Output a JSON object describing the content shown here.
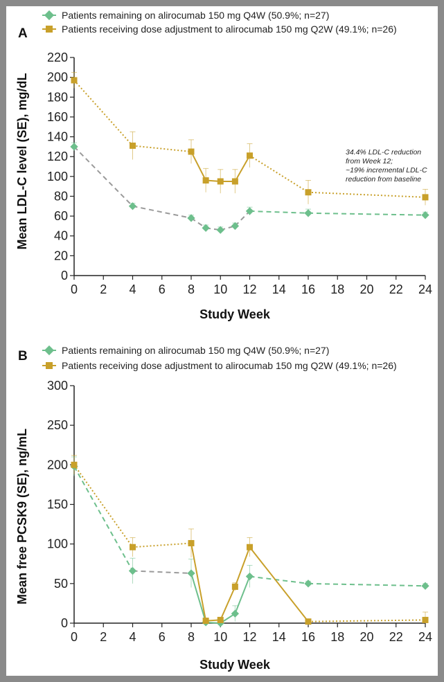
{
  "colors": {
    "q4w": "#6dbf8c",
    "q2w": "#c8a02a",
    "q4w_dashed": "#9a9a9a",
    "axis": "#222222"
  },
  "chart_data": [
    {
      "type": "line",
      "panel_label": "A",
      "xlabel": "Study Week",
      "ylabel": "Mean LDL-C level (SE), mg/dL",
      "xlim": [
        0,
        24
      ],
      "ylim": [
        0,
        220
      ],
      "xticks": [
        0,
        2,
        4,
        6,
        8,
        10,
        12,
        14,
        16,
        18,
        20,
        22,
        24
      ],
      "yticks": [
        0,
        20,
        40,
        60,
        80,
        100,
        120,
        140,
        160,
        180,
        200,
        220
      ],
      "grid": false,
      "legend_position": "top-left",
      "annotation_lines": [
        "34.4% LDL-C reduction",
        "from Week 12;",
        "~19% incremental LDL-C",
        "reduction from baseline"
      ],
      "series": [
        {
          "name": "Patients remaining on alirocumab 150 mg Q4W (50.9%; n=27)",
          "marker": "diamond",
          "x": [
            0,
            4,
            8,
            9,
            10,
            11,
            12,
            16,
            24
          ],
          "y": [
            130,
            70,
            58,
            48,
            46,
            50,
            65,
            63,
            61
          ],
          "se": [
            4,
            3,
            3,
            3,
            3,
            3,
            4,
            4,
            3
          ],
          "styles": [
            "dashed-gray",
            "dashed-gray",
            "dashed-gray",
            "dashed-gray",
            "dashed-gray",
            "dashed-gray",
            "dashed-green",
            "dashed-green"
          ]
        },
        {
          "name": "Patients receiving dose adjustment to alirocumab 150 mg Q2W (49.1%; n=26)",
          "marker": "square",
          "x": [
            0,
            4,
            8,
            9,
            10,
            11,
            12,
            16,
            24
          ],
          "y": [
            197,
            131,
            125,
            96,
            95,
            95,
            121,
            84,
            79
          ],
          "se": [
            8,
            14,
            12,
            12,
            12,
            12,
            12,
            12,
            8
          ],
          "styles": [
            "dotted",
            "dotted",
            "solid",
            "solid",
            "solid",
            "solid",
            "dotted",
            "dotted"
          ]
        }
      ]
    },
    {
      "type": "line",
      "panel_label": "B",
      "xlabel": "Study Week",
      "ylabel": "Mean free PCSK9 (SE), ng/mL",
      "xlim": [
        0,
        24
      ],
      "ylim": [
        0,
        300
      ],
      "xticks": [
        0,
        2,
        4,
        6,
        8,
        10,
        12,
        14,
        16,
        18,
        20,
        22,
        24
      ],
      "yticks": [
        0,
        50,
        100,
        150,
        200,
        250,
        300
      ],
      "grid": false,
      "legend_position": "top-left",
      "series": [
        {
          "name": "Patients remaining on alirocumab 150 mg Q4W (50.9%; n=27)",
          "marker": "diamond",
          "x": [
            0,
            4,
            8,
            9,
            10,
            11,
            12,
            16,
            24
          ],
          "y": [
            198,
            66,
            63,
            1,
            0,
            12,
            59,
            50,
            47
          ],
          "se": [
            12,
            16,
            18,
            2,
            2,
            10,
            14,
            3,
            3
          ],
          "styles": [
            "dashed-green",
            "dashed-gray",
            "solid",
            "solid",
            "solid",
            "solid",
            "dashed-green",
            "dashed-green"
          ]
        },
        {
          "name": "Patients receiving dose adjustment to alirocumab 150 mg Q2W (49.1%; n=26)",
          "marker": "square",
          "x": [
            0,
            4,
            8,
            9,
            10,
            11,
            12,
            16,
            24
          ],
          "y": [
            200,
            96,
            101,
            3,
            4,
            46,
            96,
            2,
            4
          ],
          "se": [
            12,
            12,
            18,
            2,
            2,
            5,
            12,
            2,
            10
          ],
          "styles": [
            "dotted",
            "dotted",
            "solid",
            "solid",
            "solid",
            "solid",
            "solid",
            "dotted"
          ]
        }
      ]
    }
  ]
}
